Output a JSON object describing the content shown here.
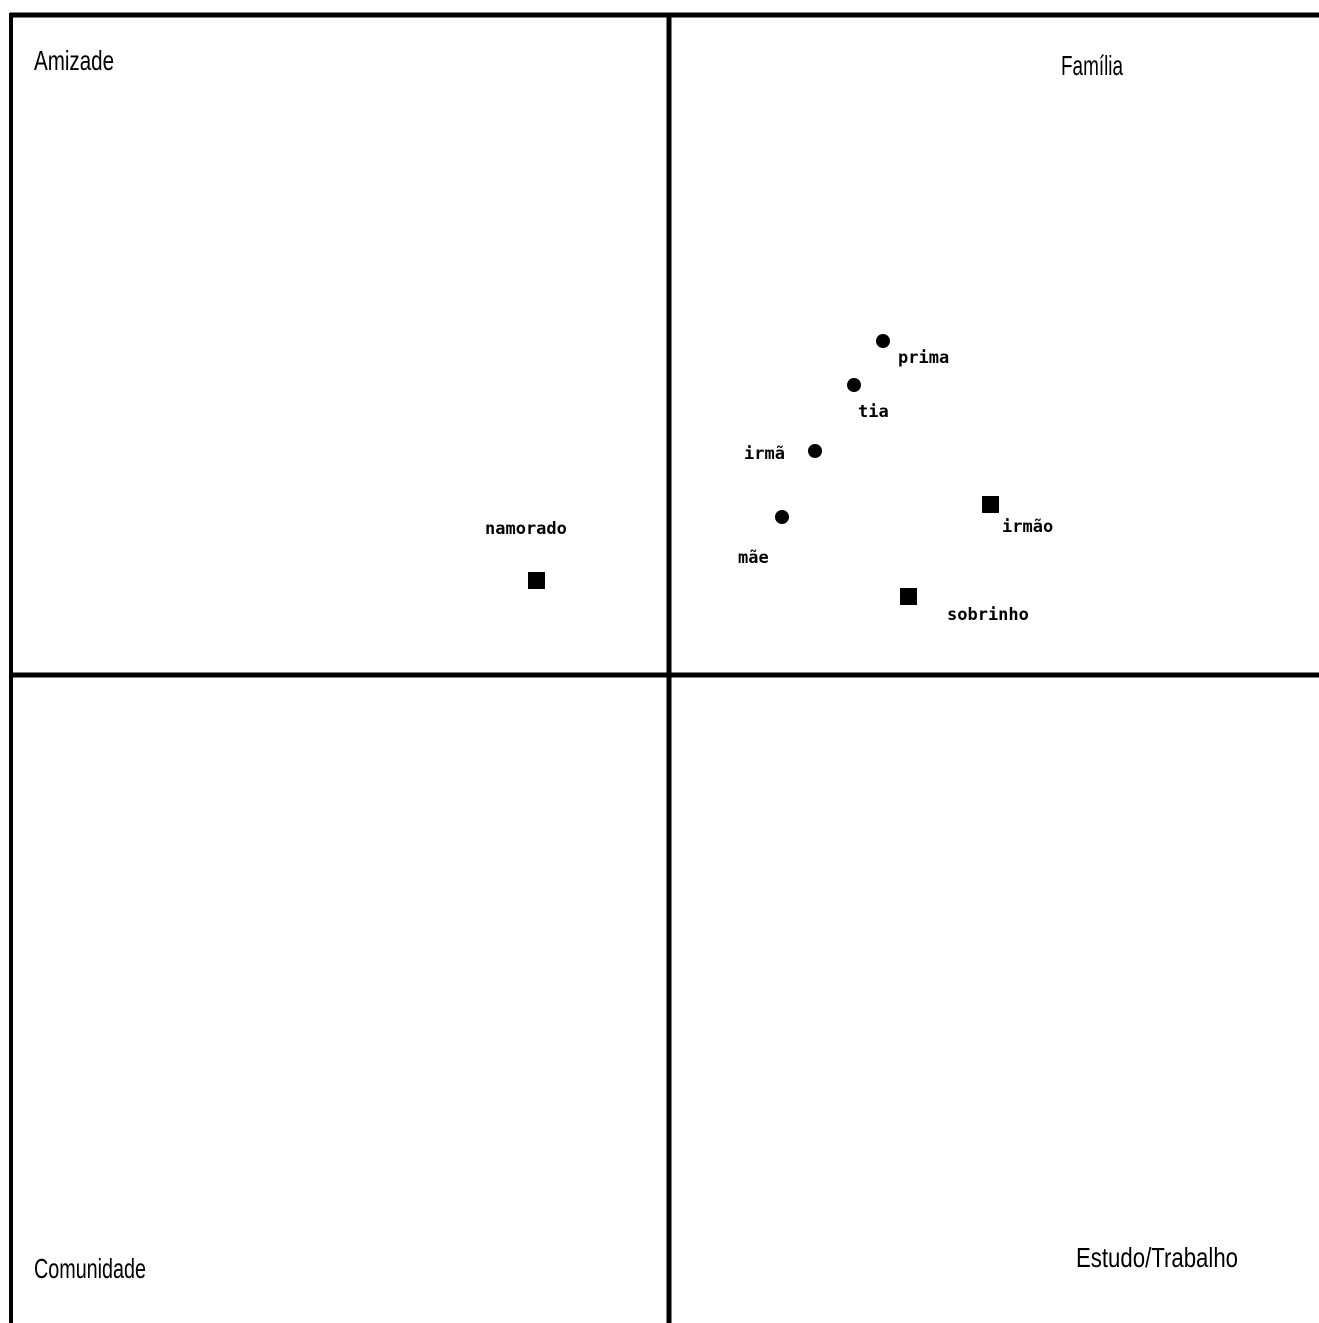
{
  "quadrants": {
    "top_left": "Amizade",
    "top_right": "Família",
    "bottom_left": "Comunidade",
    "bottom_right": "Estudo/Trabalho"
  },
  "people": [
    {
      "label": "prima",
      "marker": "circle"
    },
    {
      "label": "tia",
      "marker": "circle"
    },
    {
      "label": "irmã",
      "marker": "circle"
    },
    {
      "label": "mãe",
      "marker": "circle"
    },
    {
      "label": "irmão",
      "marker": "square"
    },
    {
      "label": "sobrinho",
      "marker": "square"
    },
    {
      "label": "namorado",
      "marker": "square"
    }
  ],
  "colors": {
    "line": "#000000",
    "marker": "#000000",
    "background": "#ffffff"
  }
}
